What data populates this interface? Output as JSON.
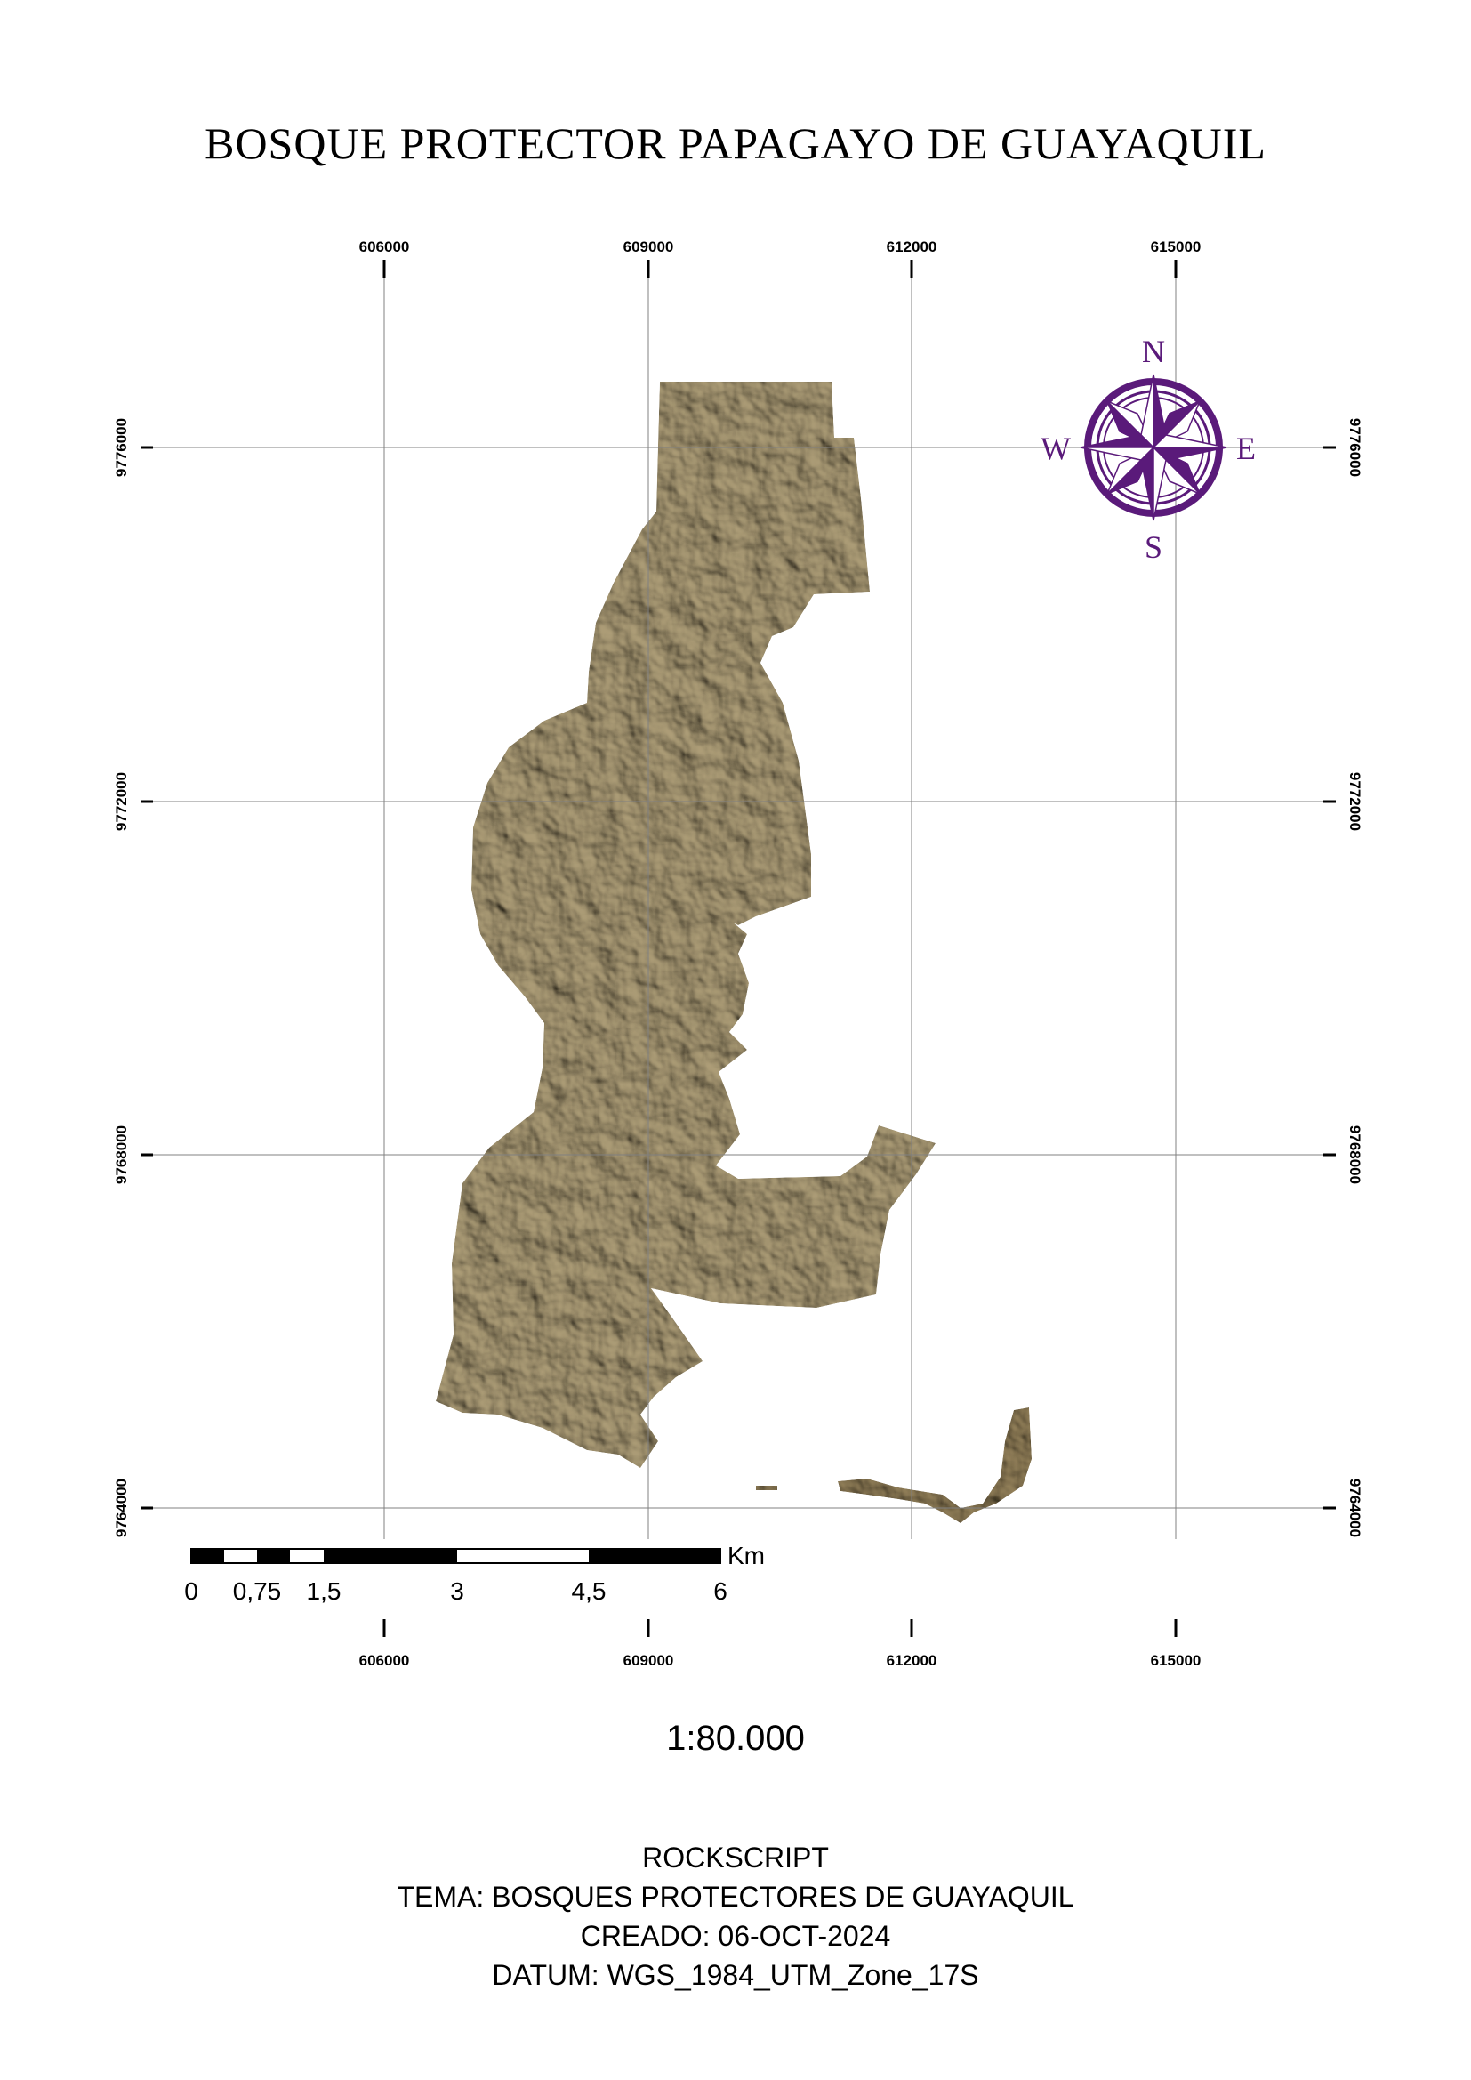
{
  "map_title": "BOSQUE PROTECTOR PAPAGAYO DE GUAYAQUIL",
  "grid": {
    "eastings": [
      "606000",
      "609000",
      "612000",
      "615000"
    ],
    "northings": [
      "9776000",
      "9772000",
      "9768000",
      "9764000"
    ]
  },
  "north_arrow": {
    "n": "N",
    "s": "S",
    "e": "E",
    "w": "W"
  },
  "scale_bar": {
    "unit": "Km",
    "labels": [
      "0",
      "0,75",
      "1,5",
      "3",
      "4,5",
      "6"
    ]
  },
  "scale_ratio": "1:80.000",
  "footer": {
    "author": "ROCKSCRIPT",
    "theme": "TEMA: BOSQUES PROTECTORES DE GUAYAQUIL",
    "created": "CREADO: 06-OCT-2024",
    "datum": "DATUM: WGS_1984_UTM_Zone_17S"
  },
  "colors": {
    "relief_base": "#a39470",
    "relief_light": "#e6dc96",
    "relief_dark": "#6b5434",
    "compass": "#5a1a7a",
    "grid": "#808080"
  }
}
